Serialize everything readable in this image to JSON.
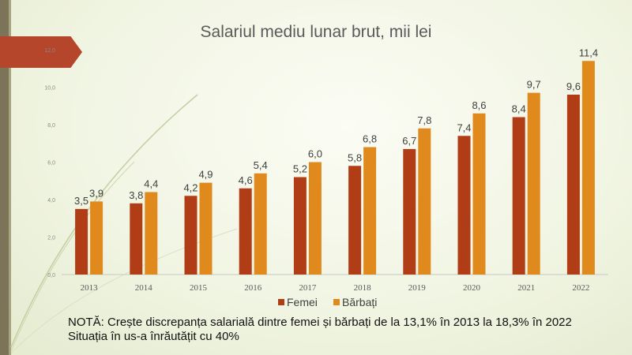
{
  "chart_data": {
    "type": "bar",
    "title": "Salariul mediu lunar brut, mii lei",
    "categories": [
      "2013",
      "2014",
      "2015",
      "2016",
      "2017",
      "2018",
      "2019",
      "2020",
      "2021",
      "2022"
    ],
    "series": [
      {
        "name": "Femei",
        "color": "#b13d17",
        "values": [
          3.5,
          3.8,
          4.2,
          4.6,
          5.2,
          5.8,
          6.7,
          7.4,
          8.4,
          9.6
        ],
        "labels": [
          "3,5",
          "3,8",
          "4,2",
          "4,6",
          "5,2",
          "5,8",
          "6,7",
          "7,4",
          "8,4",
          "9,6"
        ]
      },
      {
        "name": "Bărbați",
        "color": "#e08a1e",
        "values": [
          3.9,
          4.4,
          4.9,
          5.4,
          6.0,
          6.8,
          7.8,
          8.6,
          9.7,
          11.4
        ],
        "labels": [
          "3,9",
          "4,4",
          "4,9",
          "5,4",
          "6,0",
          "6,8",
          "7,8",
          "8,6",
          "9,7",
          "11,4"
        ]
      }
    ],
    "yticks": [
      0,
      2,
      4,
      6,
      8,
      10,
      12
    ],
    "ytick_labels": [
      "0,0",
      "2,0",
      "4,0",
      "6,0",
      "8,0",
      "10,0",
      "12,0"
    ],
    "ylim": [
      0,
      12
    ],
    "legend_position": "bottom",
    "grid": false
  },
  "notes": {
    "line1": "NOTĂ: Crește discrepanța salarială dintre femei și bărbați de la 13,1% în 2013 la 18,3% în 2022",
    "line2": "Situația în us-a înrăutățit cu 40%"
  }
}
